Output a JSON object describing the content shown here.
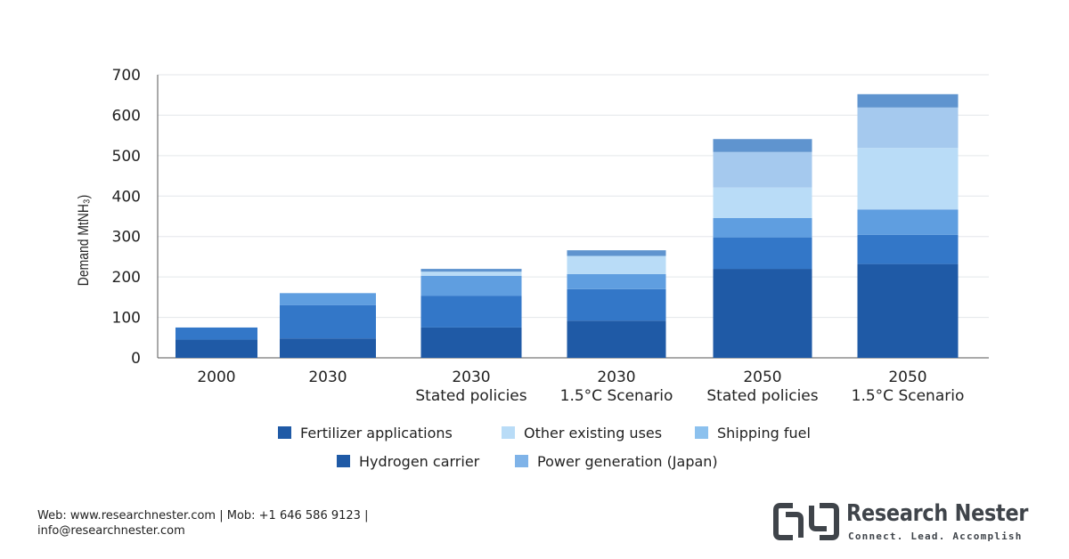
{
  "chart_data": {
    "type": "bar",
    "stacked": true,
    "title": "",
    "xlabel": "",
    "ylabel": "Demand MtNH₃)",
    "ylim": [
      0,
      700
    ],
    "yticks": [
      0,
      100,
      200,
      300,
      400,
      500,
      600,
      700
    ],
    "grid": true,
    "legend_position": "bottom",
    "categories": [
      [
        "2000"
      ],
      [
        "2030"
      ],
      [
        "2030",
        "Stated policies"
      ],
      [
        "2030",
        "1.5°C Scenario"
      ],
      [
        "2050",
        "Stated policies"
      ],
      [
        "2050",
        "1.5°C Scenario"
      ]
    ],
    "series": [
      {
        "name": "Fertilizer applications",
        "color": "#1f5aa6",
        "values": [
          45,
          48,
          75,
          92,
          220,
          232
        ]
      },
      {
        "name": "Hydrogen carrier",
        "color": "#3377c8",
        "values": [
          30,
          82,
          78,
          78,
          78,
          72
        ]
      },
      {
        "name": "Shipping fuel",
        "color": "#5f9ee0",
        "values": [
          0,
          30,
          50,
          37,
          48,
          63
        ]
      },
      {
        "name": "Other existing uses",
        "color": "#b9dcf7",
        "values": [
          0,
          0,
          10,
          45,
          75,
          152
        ]
      },
      {
        "name": "Power generation (Japan)",
        "color": "#a5c9ee",
        "values": [
          0,
          0,
          0,
          0,
          88,
          100
        ]
      },
      {
        "name": "",
        "color": "#5f94cf",
        "values": [
          0,
          0,
          7,
          14,
          32,
          33
        ]
      }
    ],
    "legend": [
      [
        {
          "label": "Fertilizer applications",
          "color": "#1f5aa6"
        },
        {
          "label": "Other existing uses",
          "color": "#b9dcf7"
        },
        {
          "label": "Shipping fuel",
          "color": "#8cc1ee"
        }
      ],
      [
        {
          "label": "Hydrogen carrier",
          "color": "#1f5aa6"
        },
        {
          "label": "Power generation (Japan)",
          "color": "#7fb3e8"
        }
      ]
    ]
  },
  "footer": {
    "contact_line1": "Web: www.researchnester.com | Mob: +1 646 586 9123 |",
    "contact_line2": "info@researchnester.com"
  },
  "logo": {
    "name": "Research Nester",
    "tagline": "Connect. Lead. Accomplish"
  }
}
